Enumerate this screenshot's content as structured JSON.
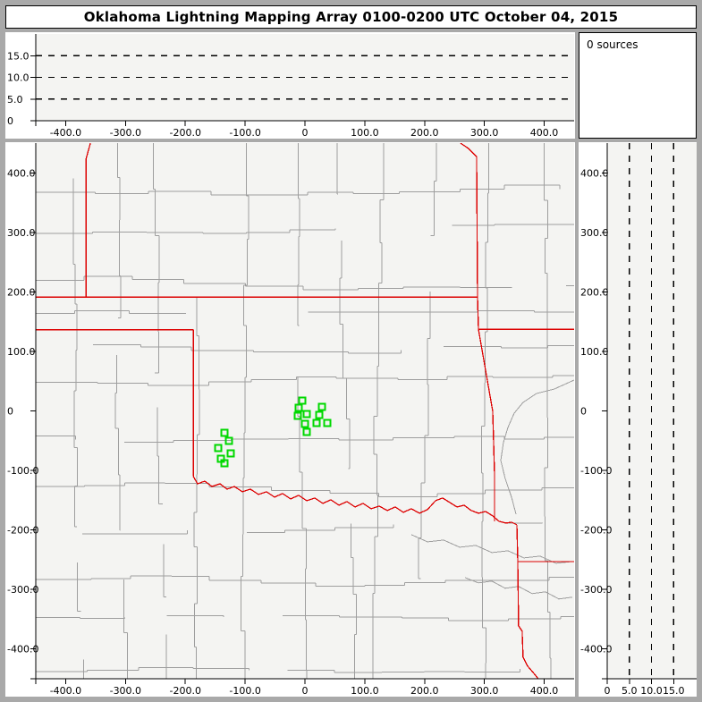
{
  "title_bar": {
    "text": "Oklahoma Lightning Mapping Array   0100-0200 UTC  October 04, 2015"
  },
  "sources_panel": {
    "text": "0 sources"
  },
  "colors": {
    "frame": "#a9a9a9",
    "panel_bg": "#ffffff",
    "plot_bg": "#f4f4f2",
    "county_line": "#9e9e9e",
    "river_line": "#9e9e9e",
    "state_border": "#dd0000",
    "station": "#00d800",
    "grid_dash": "#000000",
    "axis": "#000000",
    "text": "#000000"
  },
  "chart_data": [
    {
      "id": "ew-altitude-panel",
      "type": "scatter",
      "title": "",
      "xlim": [
        -450,
        450
      ],
      "ylim": [
        0,
        20
      ],
      "x_ticks": [
        {
          "v": -400,
          "label": "-400.0"
        },
        {
          "v": -300,
          "label": "-300.0"
        },
        {
          "v": -200,
          "label": "-200.0"
        },
        {
          "v": -100,
          "label": "-100.0"
        },
        {
          "v": 0,
          "label": "0"
        },
        {
          "v": 100,
          "label": "100.0"
        },
        {
          "v": 200,
          "label": "200.0"
        },
        {
          "v": 300,
          "label": "300.0"
        },
        {
          "v": 400,
          "label": "400.0"
        }
      ],
      "y_ticks": [
        {
          "v": 0,
          "label": "0"
        },
        {
          "v": 5,
          "label": "5.0"
        },
        {
          "v": 10,
          "label": "10.0"
        },
        {
          "v": 15,
          "label": "15.0"
        }
      ],
      "dashed_y": [
        5,
        10,
        15
      ],
      "grid": "dashed-horizontal",
      "points": []
    },
    {
      "id": "plan-view-map",
      "type": "scatter",
      "title": "",
      "xlim": [
        -450,
        450
      ],
      "ylim": [
        -450,
        450
      ],
      "x_ticks": [
        {
          "v": -400,
          "label": "-400.0"
        },
        {
          "v": -300,
          "label": "-300.0"
        },
        {
          "v": -200,
          "label": "-200.0"
        },
        {
          "v": -100,
          "label": "-100.0"
        },
        {
          "v": 0,
          "label": "0"
        },
        {
          "v": 100,
          "label": "100.0"
        },
        {
          "v": 200,
          "label": "200.0"
        },
        {
          "v": 300,
          "label": "300.0"
        },
        {
          "v": 400,
          "label": "400.0"
        }
      ],
      "y_ticks": [
        {
          "v": 400,
          "label": "400.0"
        },
        {
          "v": 300,
          "label": "300.0"
        },
        {
          "v": 200,
          "label": "200.0"
        },
        {
          "v": 100,
          "label": "100.0"
        },
        {
          "v": 0,
          "label": "0"
        },
        {
          "v": -100,
          "label": "-100.0"
        },
        {
          "v": -200,
          "label": "-200.0"
        },
        {
          "v": -300,
          "label": "-300.0"
        },
        {
          "v": -400,
          "label": "-400.0"
        }
      ],
      "stations_km": [
        [
          -4.5,
          17.3
        ],
        [
          -10.5,
          5.3
        ],
        [
          28.4,
          6.8
        ],
        [
          3.0,
          -5.3
        ],
        [
          -12.0,
          -8.3
        ],
        [
          23.9,
          -6.8
        ],
        [
          0.0,
          -21.8
        ],
        [
          19.4,
          -20.3
        ],
        [
          37.4,
          -20.3
        ],
        [
          3.0,
          -35.3
        ],
        [
          -134.5,
          -36.8
        ],
        [
          -127.1,
          -50.3
        ],
        [
          -145.0,
          -62.3
        ],
        [
          -124.1,
          -71.3
        ],
        [
          -140.5,
          -80.3
        ],
        [
          -134.5,
          -87.8
        ]
      ],
      "state_borders_km": [
        [
          [
            -358.7,
            450
          ],
          [
            -366.2,
            422.7
          ],
          [
            -366.2,
            191.4
          ]
        ],
        [
          [
            -450,
            191.4
          ],
          [
            288.5,
            191.4
          ]
        ],
        [
          [
            -450,
            136.6
          ],
          [
            -186.8,
            136.6
          ]
        ],
        [
          [
            -186.8,
            136.6
          ],
          [
            -186.8,
            -110.0
          ]
        ],
        [
          [
            260.0,
            450
          ],
          [
            273.5,
            440.8
          ],
          [
            287.0,
            427.3
          ],
          [
            288.5,
            191.4
          ],
          [
            290.0,
            137.4
          ],
          [
            313.9,
            -0.8
          ],
          [
            316.9,
            -105.9
          ],
          [
            316.9,
            -185.4
          ]
        ],
        [
          [
            290.0,
            137.4
          ],
          [
            450,
            137.4
          ]
        ],
        [
          [
            -186.8,
            -110.0
          ],
          [
            -179.4,
            -122.4
          ],
          [
            -167.4,
            -117.9
          ],
          [
            -155.5,
            -126.9
          ],
          [
            -142.0,
            -122.4
          ],
          [
            -130.0,
            -131.4
          ],
          [
            -118.1,
            -126.9
          ],
          [
            -104.6,
            -135.9
          ],
          [
            -91.2,
            -131.4
          ],
          [
            -77.7,
            -140.4
          ],
          [
            -64.3,
            -135.9
          ],
          [
            -50.8,
            -144.9
          ],
          [
            -37.4,
            -138.9
          ],
          [
            -23.9,
            -147.9
          ],
          [
            -10.5,
            -141.9
          ],
          [
            3.0,
            -150.9
          ],
          [
            16.4,
            -146.4
          ],
          [
            29.9,
            -155.4
          ],
          [
            43.3,
            -149.4
          ],
          [
            56.8,
            -158.4
          ],
          [
            70.3,
            -152.4
          ],
          [
            83.7,
            -161.4
          ],
          [
            97.2,
            -155.4
          ],
          [
            110.6,
            -164.4
          ],
          [
            124.1,
            -159.9
          ],
          [
            137.5,
            -167.4
          ],
          [
            151.0,
            -161.4
          ],
          [
            164.4,
            -170.4
          ],
          [
            177.9,
            -164.4
          ],
          [
            191.3,
            -171.9
          ],
          [
            204.8,
            -165.9
          ],
          [
            218.2,
            -150.9
          ],
          [
            230.2,
            -146.4
          ],
          [
            242.2,
            -153.9
          ],
          [
            254.1,
            -161.4
          ],
          [
            266.1,
            -158.4
          ],
          [
            278.0,
            -167.4
          ],
          [
            290.0,
            -171.9
          ],
          [
            302.0,
            -168.9
          ],
          [
            313.9,
            -176.4
          ],
          [
            324.4,
            -185.4
          ],
          [
            336.3,
            -188.4
          ],
          [
            345.3,
            -186.9
          ],
          [
            354.3,
            -191.4
          ]
        ],
        [
          [
            354.3,
            -191.4
          ],
          [
            355.8,
            -253.0
          ],
          [
            450,
            -253.0
          ]
        ],
        [
          [
            355.8,
            -253.0
          ],
          [
            357.2,
            -361.1
          ],
          [
            363.2,
            -370.1
          ],
          [
            364.7,
            -413.7
          ],
          [
            372.2,
            -428.7
          ],
          [
            381.2,
            -439.2
          ],
          [
            390.1,
            -450
          ]
        ]
      ],
      "rivers_km": [
        [
          [
            450,
            51.8
          ],
          [
            417.0,
            36.8
          ],
          [
            387.1,
            29.3
          ],
          [
            364.7,
            14.3
          ],
          [
            349.8,
            -3.8
          ],
          [
            339.3,
            -27.8
          ],
          [
            331.8,
            -53.3
          ],
          [
            327.4,
            -83.3
          ],
          [
            334.8,
            -113.4
          ],
          [
            345.3,
            -144.9
          ],
          [
            352.8,
            -173.4
          ]
        ],
        [
          [
            177.9,
            -208.0
          ],
          [
            204.8,
            -220.0
          ],
          [
            231.7,
            -217.0
          ],
          [
            258.6,
            -229.0
          ],
          [
            285.5,
            -226.0
          ],
          [
            312.4,
            -238.0
          ],
          [
            339.3,
            -235.0
          ],
          [
            366.2,
            -247.0
          ],
          [
            393.1,
            -244.0
          ],
          [
            420.0,
            -256.0
          ],
          [
            446.9,
            -253.0
          ]
        ],
        [
          [
            267.6,
            -280.0
          ],
          [
            290.0,
            -289.0
          ],
          [
            312.4,
            -286.0
          ],
          [
            334.8,
            -298.0
          ],
          [
            357.2,
            -295.0
          ],
          [
            379.7,
            -307.0
          ],
          [
            402.1,
            -304.0
          ],
          [
            424.5,
            -316.0
          ],
          [
            446.9,
            -313.0
          ]
        ]
      ],
      "points": []
    },
    {
      "id": "ns-altitude-panel",
      "type": "scatter",
      "title": "",
      "xlim": [
        0,
        20
      ],
      "ylim": [
        -450,
        450
      ],
      "x_ticks": [
        {
          "v": 0,
          "label": "0"
        },
        {
          "v": 5,
          "label": "5.0"
        },
        {
          "v": 10,
          "label": "10.0"
        },
        {
          "v": 15,
          "label": "15.0"
        }
      ],
      "y_ticks": [
        {
          "v": 400,
          "label": "400.0"
        },
        {
          "v": 300,
          "label": "300.0"
        },
        {
          "v": 200,
          "label": "200.0"
        },
        {
          "v": 100,
          "label": "100.0"
        },
        {
          "v": 0,
          "label": "0"
        },
        {
          "v": -100,
          "label": "-100.0"
        },
        {
          "v": -200,
          "label": "-200.0"
        },
        {
          "v": -300,
          "label": "-300.0"
        },
        {
          "v": -400,
          "label": "-400.0"
        }
      ],
      "dashed_x": [
        5,
        10,
        15
      ],
      "grid": "dashed-vertical",
      "points": []
    }
  ]
}
